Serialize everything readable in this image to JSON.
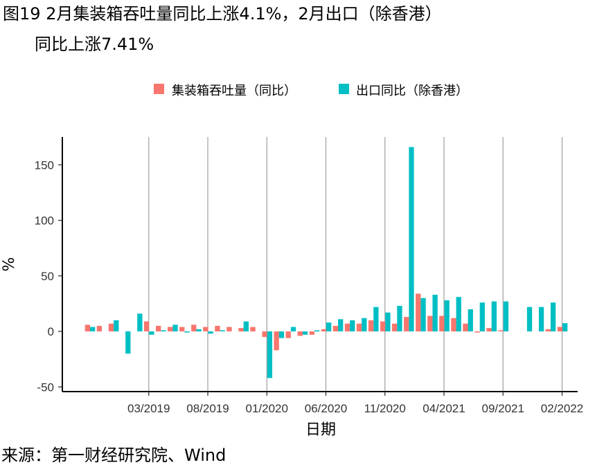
{
  "title": {
    "line1": "图19 2月集装箱吞吐量同比上涨4.1%，2月出口（除香港）",
    "line2": "同比上涨7.41%"
  },
  "source": "来源：第一财经研究院、Wind",
  "colors": {
    "container": "#F8766D",
    "export": "#00BFC4",
    "grid": "#a6a6a6",
    "axis": "#000000"
  },
  "chart_data": {
    "type": "bar",
    "xlabel": "日期",
    "ylabel": "%",
    "ylim": [
      -52,
      175
    ],
    "yticks": [
      -50,
      0,
      50,
      100,
      150
    ],
    "xtick_labels": [
      "03/2019",
      "08/2019",
      "01/2020",
      "06/2020",
      "11/2020",
      "04/2021",
      "09/2021",
      "02/2022"
    ],
    "legend": {
      "position": "top",
      "entries": [
        "集装箱吞吐量（同比）",
        "出口同比（除香港）"
      ]
    },
    "categories": [
      "10/2018",
      "11/2018",
      "12/2018",
      "01/2019",
      "02/2019",
      "03/2019",
      "04/2019",
      "05/2019",
      "06/2019",
      "07/2019",
      "08/2019",
      "09/2019",
      "10/2019",
      "11/2019",
      "12/2019",
      "01/2020",
      "02/2020",
      "03/2020",
      "04/2020",
      "05/2020",
      "06/2020",
      "07/2020",
      "08/2020",
      "09/2020",
      "10/2020",
      "11/2020",
      "12/2020",
      "01/2021",
      "02/2021",
      "03/2021",
      "04/2021",
      "05/2021",
      "06/2021",
      "07/2021",
      "08/2021",
      "09/2021",
      "10/2021",
      "11/2021",
      "12/2021",
      "01/2022",
      "02/2022"
    ],
    "series": [
      {
        "name": "集装箱吞吐量（同比）",
        "values": [
          6,
          5,
          7,
          0,
          0,
          9,
          5,
          4,
          4,
          6,
          4,
          5,
          4,
          3,
          4,
          -5,
          -17,
          -6,
          -4,
          -3,
          2,
          5,
          7,
          7,
          10,
          9,
          7,
          13,
          34,
          14,
          14,
          12,
          7,
          -1,
          3,
          1,
          0,
          0,
          0,
          2,
          4.1
        ]
      },
      {
        "name": "出口同比（除香港）",
        "values": [
          4,
          0,
          10,
          -20,
          16,
          -3,
          1,
          6,
          -1,
          2,
          -2,
          1,
          0,
          9,
          0,
          -42,
          -6,
          4,
          -3,
          1,
          8,
          11,
          10,
          12,
          22,
          17,
          23,
          166,
          30,
          33,
          28,
          31,
          20,
          26,
          27,
          27,
          0,
          22,
          22,
          26,
          7.41
        ]
      }
    ]
  }
}
